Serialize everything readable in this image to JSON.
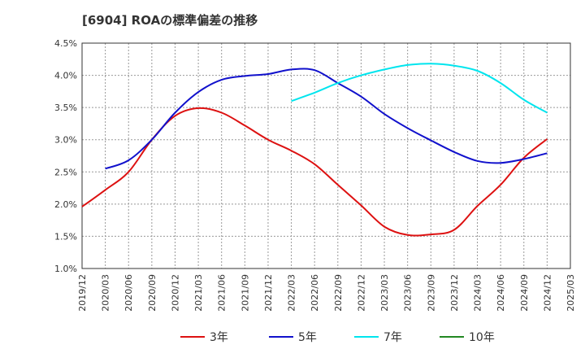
{
  "chart_data": {
    "type": "line",
    "title": "[6904]  ROAの標準偏差の推移",
    "x_ticks": [
      "2019/12",
      "2020/03",
      "2020/06",
      "2020/09",
      "2020/12",
      "2021/03",
      "2021/06",
      "2021/09",
      "2021/12",
      "2022/03",
      "2022/06",
      "2022/09",
      "2022/12",
      "2023/03",
      "2023/06",
      "2023/09",
      "2023/12",
      "2024/03",
      "2024/06",
      "2024/09",
      "2024/12",
      "2025/03"
    ],
    "y_ticks": [
      "1.0%",
      "1.5%",
      "2.0%",
      "2.5%",
      "3.0%",
      "3.5%",
      "4.0%",
      "4.5%"
    ],
    "ylim": [
      1.0,
      4.5
    ],
    "grid": true,
    "legend_position": "bottom",
    "series": [
      {
        "name": "3年",
        "color": "#dd1111",
        "x": [
          "2019/12",
          "2020/03",
          "2020/06",
          "2020/09",
          "2020/12",
          "2021/03",
          "2021/06",
          "2021/09",
          "2021/12",
          "2022/03",
          "2022/06",
          "2022/09",
          "2022/12",
          "2023/03",
          "2023/06",
          "2023/09",
          "2023/12",
          "2024/03",
          "2024/06",
          "2024/09",
          "2024/12"
        ],
        "values": [
          1.96,
          2.22,
          2.5,
          3.0,
          3.37,
          3.49,
          3.42,
          3.22,
          3.0,
          2.83,
          2.62,
          2.3,
          1.98,
          1.65,
          1.52,
          1.53,
          1.6,
          1.97,
          2.3,
          2.72,
          3.01
        ]
      },
      {
        "name": "5年",
        "color": "#1111cc",
        "x": [
          "2020/03",
          "2020/06",
          "2020/09",
          "2020/12",
          "2021/03",
          "2021/06",
          "2021/09",
          "2021/12",
          "2022/03",
          "2022/06",
          "2022/09",
          "2022/12",
          "2023/03",
          "2023/06",
          "2023/09",
          "2023/12",
          "2024/03",
          "2024/06",
          "2024/09",
          "2024/12"
        ],
        "values": [
          2.55,
          2.68,
          3.0,
          3.42,
          3.74,
          3.93,
          3.99,
          4.02,
          4.09,
          4.08,
          3.88,
          3.67,
          3.4,
          3.18,
          2.99,
          2.81,
          2.67,
          2.64,
          2.7,
          2.79
        ]
      },
      {
        "name": "7年",
        "color": "#00e5ee",
        "x": [
          "2022/03",
          "2022/06",
          "2022/09",
          "2022/12",
          "2023/03",
          "2023/06",
          "2023/09",
          "2023/12",
          "2024/03",
          "2024/06",
          "2024/09",
          "2024/12"
        ],
        "values": [
          3.6,
          3.73,
          3.88,
          4.0,
          4.09,
          4.16,
          4.18,
          4.15,
          4.07,
          3.88,
          3.62,
          3.42
        ]
      },
      {
        "name": "10年",
        "color": "#228822",
        "x": [],
        "values": []
      }
    ]
  }
}
